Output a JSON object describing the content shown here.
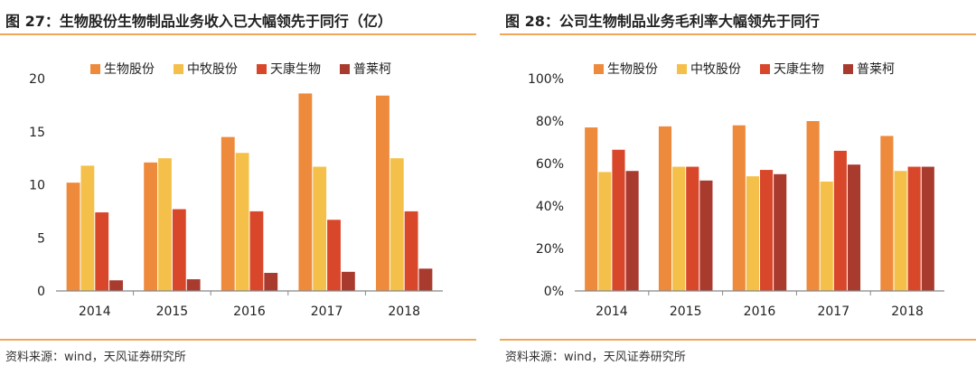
{
  "charts": [
    {
      "title": "图 27：生物股份生物制品业务收入已大幅领先于同行（亿）",
      "source": "资料来源：wind，天风证券研究所",
      "chart_data": {
        "type": "bar",
        "categories": [
          "2014",
          "2015",
          "2016",
          "2017",
          "2018"
        ],
        "series": [
          {
            "name": "生物股份",
            "color": "#ee8a3c",
            "values": [
              10.2,
              12.1,
              14.5,
              18.6,
              18.4
            ]
          },
          {
            "name": "中牧股份",
            "color": "#f5c04a",
            "values": [
              11.8,
              12.5,
              13.0,
              11.7,
              12.5
            ]
          },
          {
            "name": "天康生物",
            "color": "#d9472b",
            "values": [
              7.4,
              7.7,
              7.5,
              6.7,
              7.5
            ]
          },
          {
            "name": "普莱柯",
            "color": "#a93a2e",
            "values": [
              1.0,
              1.1,
              1.7,
              1.8,
              2.1
            ]
          }
        ],
        "ylim": [
          0,
          20
        ],
        "yticks": [
          0,
          5,
          10,
          15,
          20
        ],
        "ytick_labels": [
          "0",
          "5",
          "10",
          "15",
          "20"
        ],
        "legend_position": "top",
        "grid": false
      }
    },
    {
      "title": "图 28：公司生物制品业务毛利率大幅领先于同行",
      "source": "资料来源：wind，天风证券研究所",
      "chart_data": {
        "type": "bar",
        "categories": [
          "2014",
          "2015",
          "2016",
          "2017",
          "2018"
        ],
        "series": [
          {
            "name": "生物股份",
            "color": "#ee8a3c",
            "values": [
              77,
              77.5,
              78,
              80,
              73
            ]
          },
          {
            "name": "中牧股份",
            "color": "#f5c04a",
            "values": [
              56,
              58.5,
              54,
              51.5,
              56.5
            ]
          },
          {
            "name": "天康生物",
            "color": "#d9472b",
            "values": [
              66.5,
              58.5,
              57,
              66,
              58.5
            ]
          },
          {
            "name": "普莱柯",
            "color": "#a93a2e",
            "values": [
              56.5,
              52,
              55,
              59.5,
              58.5
            ]
          }
        ],
        "ylim": [
          0,
          100
        ],
        "yticks": [
          0,
          20,
          40,
          60,
          80,
          100
        ],
        "ytick_labels": [
          "0%",
          "20%",
          "40%",
          "60%",
          "80%",
          "100%"
        ],
        "legend_position": "top",
        "grid": false
      }
    }
  ]
}
